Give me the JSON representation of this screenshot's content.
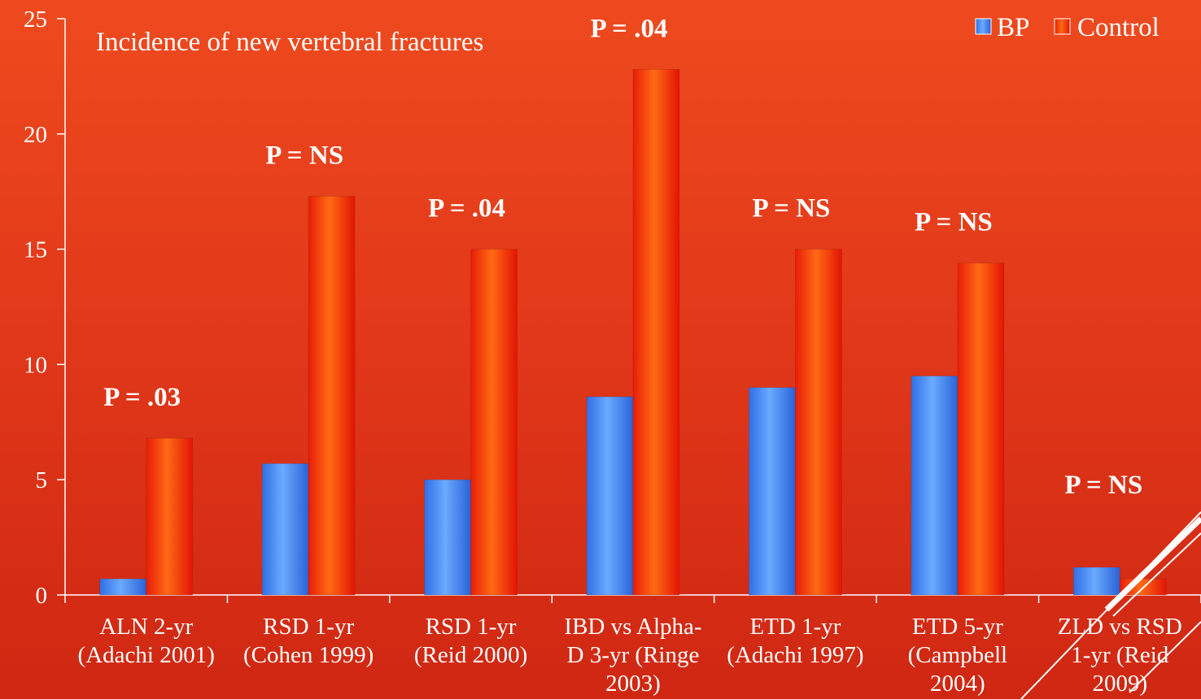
{
  "chart_data": {
    "type": "bar",
    "title": "Incidence of new vertebral fractures",
    "categories": [
      [
        "ALN 2-yr",
        "(Adachi 2001)"
      ],
      [
        "RSD 1-yr",
        "(Cohen 1999)"
      ],
      [
        "RSD 1-yr",
        "(Reid 2000)"
      ],
      [
        "IBD vs Alpha-",
        "D 3-yr (Ringe",
        "2003)"
      ],
      [
        "ETD 1-yr",
        "(Adachi 1997)"
      ],
      [
        "ETD 5-yr",
        "(Campbell",
        "2004)"
      ],
      [
        "ZLD vs RSD",
        "1-yr (Reid",
        "2009)"
      ]
    ],
    "series": [
      {
        "name": "BP",
        "values": [
          0.7,
          5.7,
          5.0,
          8.6,
          9.0,
          9.5,
          1.2
        ]
      },
      {
        "name": "Control",
        "values": [
          6.8,
          17.3,
          15.0,
          22.8,
          15.0,
          14.4,
          0.7
        ]
      }
    ],
    "annotations": [
      "P = .03",
      "P = NS",
      "P = .04",
      "P = .04",
      "P = NS",
      "P = NS",
      "P = NS"
    ],
    "ylim": [
      0,
      25
    ],
    "yticks": [
      0,
      5,
      10,
      15,
      20,
      25
    ],
    "xlabel": "",
    "ylabel": "",
    "legend_position": "top-right",
    "grid": false,
    "colors": {
      "BP": "#4f8ff5",
      "Control": "#ff4a12",
      "axis": "#ffffff"
    }
  }
}
